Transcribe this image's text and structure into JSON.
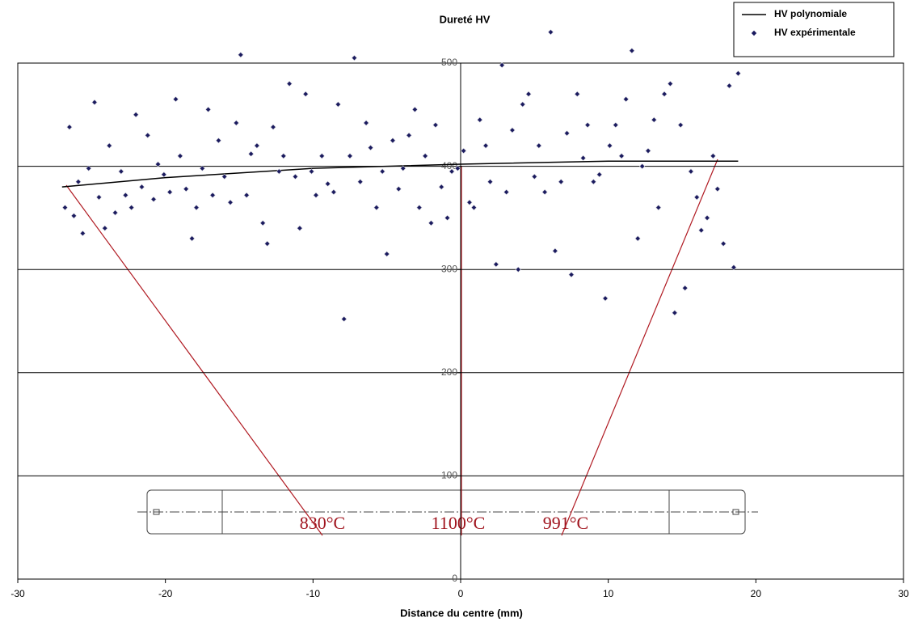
{
  "chart_data": {
    "type": "scatter",
    "title": "Dureté HV",
    "x_label": "Distance du centre (mm)",
    "xlim": [
      -30,
      30
    ],
    "xticks": [
      -30,
      -20,
      -10,
      0,
      10,
      20,
      30
    ],
    "ylim": [
      0,
      500
    ],
    "yticks": [
      0,
      100,
      200,
      300,
      400,
      500
    ],
    "grid": true,
    "legend": "top-right",
    "annotations": [
      {
        "text": "830°C"
      },
      {
        "text": "1100°C"
      },
      {
        "text": "991°C"
      }
    ],
    "series": [
      {
        "name": "HV polynomiale",
        "kind": "line",
        "color": "#000000",
        "x": [
          -27,
          -20,
          -10,
          0,
          10,
          18.8
        ],
        "values": [
          380,
          389,
          398,
          402,
          405,
          405
        ]
      },
      {
        "name": "HV expérimentale",
        "kind": "points",
        "color": "#1a1a5e",
        "x": [
          -26.8,
          -26.5,
          -26.2,
          -25.9,
          -25.6,
          -25.2,
          -24.8,
          -24.5,
          -24.1,
          -23.8,
          -23.4,
          -23,
          -22.7,
          -22.3,
          -22,
          -21.6,
          -21.2,
          -20.8,
          -20.5,
          -20.1,
          -19.7,
          -19.3,
          -19,
          -18.6,
          -18.2,
          -17.9,
          -17.5,
          -17.1,
          -16.8,
          -16.4,
          -16,
          -15.6,
          -15.2,
          -14.9,
          -14.5,
          -14.2,
          -13.8,
          -13.4,
          -13.1,
          -12.7,
          -12.3,
          -12,
          -11.6,
          -11.2,
          -10.9,
          -10.5,
          -10.1,
          -9.8,
          -9.4,
          -9,
          -8.6,
          -8.3,
          -7.9,
          -7.5,
          -7.2,
          -6.8,
          -6.4,
          -6.1,
          -5.7,
          -5.3,
          -5,
          -4.6,
          -4.2,
          -3.9,
          -3.5,
          -3.1,
          -2.8,
          -2.4,
          -2,
          -1.7,
          -1.3,
          -0.9,
          -0.6,
          -0.2,
          0.2,
          0.6,
          0.9,
          1.3,
          1.7,
          2,
          2.4,
          2.8,
          3.1,
          3.5,
          3.9,
          4.2,
          4.6,
          5,
          5.3,
          5.7,
          6.1,
          6.4,
          6.8,
          7.2,
          7.5,
          7.9,
          8.3,
          8.6,
          9,
          9.4,
          9.8,
          10.1,
          10.5,
          10.9,
          11.2,
          11.6,
          12,
          12.3,
          12.7,
          13.1,
          13.4,
          13.8,
          14.2,
          14.5,
          14.9,
          15.2,
          15.6,
          16,
          16.3,
          16.7,
          17.1,
          17.4,
          17.8,
          18.2,
          18.5,
          18.8
        ],
        "values": [
          360,
          438,
          352,
          385,
          335,
          398,
          462,
          370,
          340,
          420,
          355,
          395,
          372,
          360,
          450,
          380,
          430,
          368,
          402,
          392,
          375,
          465,
          410,
          378,
          330,
          360,
          398,
          455,
          372,
          425,
          390,
          365,
          442,
          508,
          372,
          412,
          420,
          345,
          325,
          438,
          395,
          410,
          480,
          390,
          340,
          470,
          395,
          372,
          410,
          383,
          375,
          460,
          252,
          410,
          505,
          385,
          442,
          418,
          360,
          395,
          315,
          425,
          378,
          398,
          430,
          455,
          360,
          410,
          345,
          440,
          380,
          350,
          395,
          398,
          415,
          365,
          360,
          445,
          420,
          385,
          305,
          498,
          375,
          435,
          300,
          460,
          470,
          390,
          420,
          375,
          530,
          318,
          385,
          432,
          295,
          470,
          408,
          440,
          385,
          392,
          272,
          420,
          440,
          410,
          465,
          512,
          330,
          400,
          415,
          445,
          360,
          470,
          480,
          258,
          440,
          282,
          395,
          370,
          338,
          350,
          410,
          378,
          325,
          478,
          302,
          490
        ]
      }
    ]
  }
}
